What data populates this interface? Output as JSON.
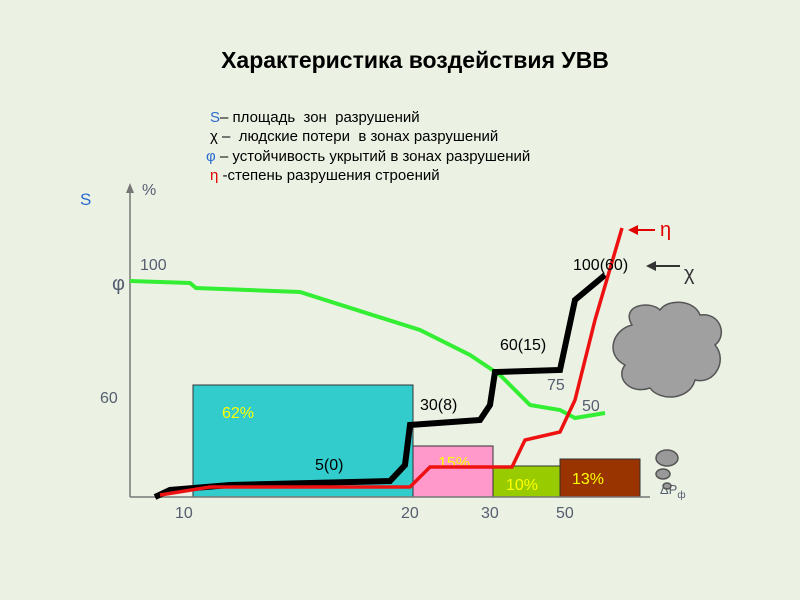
{
  "title": "Характеристика воздействия УВВ",
  "legend": [
    {
      "symbol": "S",
      "text": "– площадь  зон  разрушений"
    },
    {
      "symbol": "χ",
      "text": " –  людские потери  в зонах разрушений"
    },
    {
      "symbol": "φ",
      "text": " – устойчивость укрытий в зонах разрушений"
    },
    {
      "symbol": "η",
      "text": " -степень разрушения строений"
    }
  ],
  "axis": {
    "y_left": "S",
    "y_right": "%",
    "y_100": "100",
    "phi": "φ",
    "y_60": "60",
    "x_label": "ΔP",
    "x_sub": "ф",
    "x_ticks": [
      "10",
      "20",
      "30",
      "50"
    ]
  },
  "zones": [
    {
      "label": "62%"
    },
    {
      "label": "15%"
    },
    {
      "label": "10%"
    },
    {
      "label": "13%"
    }
  ],
  "curve_labels": [
    "5(0)",
    "30(8)",
    "60(15)",
    "75",
    "50",
    "100(60)"
  ],
  "markers": {
    "eta": "η",
    "chi": "χ"
  }
}
